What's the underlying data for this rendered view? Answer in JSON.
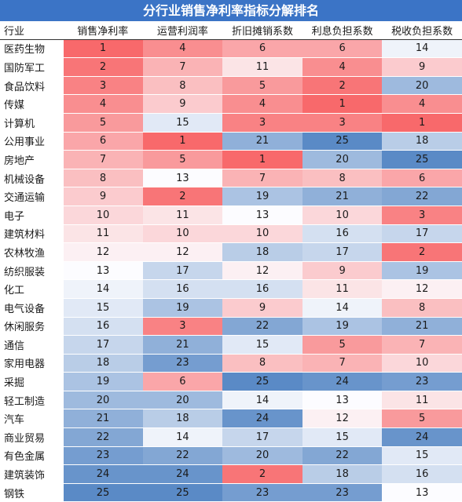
{
  "title": "分行业销售净利率指标分解排名",
  "columns": [
    "行业",
    "销售净利率",
    "运营利润率",
    "折旧摊销系数",
    "利息负担系数",
    "税收负担系数"
  ],
  "rank_max": 25,
  "colors": {
    "high": "#f8696b",
    "mid": "#fcfcff",
    "low": "#5a8ac6",
    "header_bg": "#3b74c6"
  },
  "rows": [
    {
      "industry": "医药生物",
      "values": [
        1,
        4,
        6,
        6,
        14
      ]
    },
    {
      "industry": "国防军工",
      "values": [
        2,
        7,
        11,
        4,
        9
      ]
    },
    {
      "industry": "食品饮料",
      "values": [
        3,
        8,
        5,
        2,
        20
      ]
    },
    {
      "industry": "传媒",
      "values": [
        4,
        9,
        4,
        1,
        4
      ]
    },
    {
      "industry": "计算机",
      "values": [
        5,
        15,
        3,
        3,
        1
      ]
    },
    {
      "industry": "公用事业",
      "values": [
        6,
        1,
        21,
        25,
        18
      ]
    },
    {
      "industry": "房地产",
      "values": [
        7,
        5,
        1,
        20,
        25
      ]
    },
    {
      "industry": "机械设备",
      "values": [
        8,
        13,
        7,
        8,
        6
      ]
    },
    {
      "industry": "交通运输",
      "values": [
        9,
        2,
        19,
        21,
        22
      ]
    },
    {
      "industry": "电子",
      "values": [
        10,
        11,
        13,
        10,
        3
      ]
    },
    {
      "industry": "建筑材料",
      "values": [
        11,
        10,
        10,
        16,
        17
      ]
    },
    {
      "industry": "农林牧渔",
      "values": [
        12,
        12,
        18,
        17,
        2
      ]
    },
    {
      "industry": "纺织服装",
      "values": [
        13,
        17,
        12,
        9,
        19
      ]
    },
    {
      "industry": "化工",
      "values": [
        14,
        16,
        16,
        11,
        12
      ]
    },
    {
      "industry": "电气设备",
      "values": [
        15,
        19,
        9,
        14,
        8
      ]
    },
    {
      "industry": "休闲服务",
      "values": [
        16,
        3,
        22,
        19,
        21
      ]
    },
    {
      "industry": "通信",
      "values": [
        17,
        21,
        15,
        5,
        7
      ]
    },
    {
      "industry": "家用电器",
      "values": [
        18,
        23,
        8,
        7,
        10
      ]
    },
    {
      "industry": "采掘",
      "values": [
        19,
        6,
        25,
        24,
        23
      ]
    },
    {
      "industry": "轻工制造",
      "values": [
        20,
        20,
        14,
        13,
        11
      ]
    },
    {
      "industry": "汽车",
      "values": [
        21,
        18,
        24,
        12,
        5
      ]
    },
    {
      "industry": "商业贸易",
      "values": [
        22,
        14,
        17,
        15,
        24
      ]
    },
    {
      "industry": "有色金属",
      "values": [
        23,
        22,
        20,
        22,
        15
      ]
    },
    {
      "industry": "建筑装饰",
      "values": [
        24,
        24,
        2,
        18,
        16
      ]
    },
    {
      "industry": "钢铁",
      "values": [
        25,
        25,
        23,
        23,
        13
      ]
    }
  ]
}
